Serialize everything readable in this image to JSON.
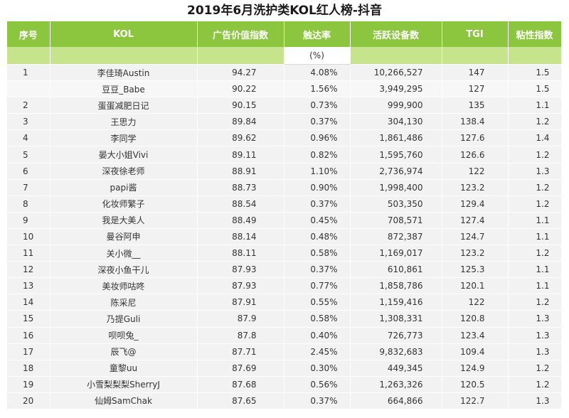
{
  "title": "2019年6月洗护类KOL红人榜-抖音",
  "headers": [
    "序号",
    "KOL",
    "广告价值指数",
    "触达率",
    "活跃设备数",
    "TGI",
    "粘性指数"
  ],
  "unit_row": [
    "",
    "",
    "",
    "(%)",
    "",
    "",
    ""
  ],
  "rows": [
    {
      "rank": "1",
      "kol": "李佳琦Austin",
      "ad_index": "94.27",
      "reach": "4.08%",
      "devices": "10,266,527",
      "tgi": "147",
      "stickiness": "1.5"
    },
    {
      "rank": "",
      "kol": "豆豆_Babe",
      "ad_index": "90.22",
      "reach": "1.56%",
      "devices": "3,949,295",
      "tgi": "127",
      "stickiness": "1.5"
    },
    {
      "rank": "2",
      "kol": "蛋蛋减肥日记",
      "ad_index": "90.15",
      "reach": "0.73%",
      "devices": "999,900",
      "tgi": "135",
      "stickiness": "1.1"
    },
    {
      "rank": "3",
      "kol": "王思力",
      "ad_index": "89.84",
      "reach": "0.37%",
      "devices": "304,130",
      "tgi": "138.4",
      "stickiness": "1.2"
    },
    {
      "rank": "4",
      "kol": "李同学",
      "ad_index": "89.62",
      "reach": "0.96%",
      "devices": "1,861,486",
      "tgi": "127.6",
      "stickiness": "1.4"
    },
    {
      "rank": "5",
      "kol": "晏大小姐Vivi",
      "ad_index": "89.11",
      "reach": "0.82%",
      "devices": "1,595,760",
      "tgi": "126.6",
      "stickiness": "1.2"
    },
    {
      "rank": "6",
      "kol": "深夜徐老师",
      "ad_index": "88.91",
      "reach": "1.10%",
      "devices": "2,736,974",
      "tgi": "122",
      "stickiness": "1.3"
    },
    {
      "rank": "7",
      "kol": "papi酱",
      "ad_index": "88.73",
      "reach": "0.90%",
      "devices": "1,998,400",
      "tgi": "123.2",
      "stickiness": "1.2"
    },
    {
      "rank": "8",
      "kol": "化妆师繁子",
      "ad_index": "88.54",
      "reach": "0.37%",
      "devices": "503,350",
      "tgi": "129.4",
      "stickiness": "1.2"
    },
    {
      "rank": "9",
      "kol": "我是大美人",
      "ad_index": "88.49",
      "reach": "0.45%",
      "devices": "708,571",
      "tgi": "127.4",
      "stickiness": "1.1"
    },
    {
      "rank": "10",
      "kol": "曼谷阿申",
      "ad_index": "88.14",
      "reach": "0.48%",
      "devices": "872,387",
      "tgi": "124.7",
      "stickiness": "1.1"
    },
    {
      "rank": "11",
      "kol": "关小微__",
      "ad_index": "88.11",
      "reach": "0.58%",
      "devices": "1,169,017",
      "tgi": "123.2",
      "stickiness": "1.2"
    },
    {
      "rank": "12",
      "kol": "深夜小鱼干儿",
      "ad_index": "87.93",
      "reach": "0.37%",
      "devices": "610,861",
      "tgi": "125.3",
      "stickiness": "1.1"
    },
    {
      "rank": "13",
      "kol": "美妆师咕咚",
      "ad_index": "87.93",
      "reach": "0.77%",
      "devices": "1,858,786",
      "tgi": "120.1",
      "stickiness": "1.1"
    },
    {
      "rank": "14",
      "kol": "陈采尼",
      "ad_index": "87.91",
      "reach": "0.55%",
      "devices": "1,159,416",
      "tgi": "122",
      "stickiness": "1.2"
    },
    {
      "rank": "15",
      "kol": "乃提Guli",
      "ad_index": "87.9",
      "reach": "0.58%",
      "devices": "1,308,331",
      "tgi": "120.8",
      "stickiness": "1.3"
    },
    {
      "rank": "16",
      "kol": "呗呗兔_",
      "ad_index": "87.8",
      "reach": "0.40%",
      "devices": "726,773",
      "tgi": "123.4",
      "stickiness": "1.3"
    },
    {
      "rank": "17",
      "kol": "辰飞@",
      "ad_index": "87.71",
      "reach": "2.45%",
      "devices": "9,832,683",
      "tgi": "109.4",
      "stickiness": "1.3"
    },
    {
      "rank": "18",
      "kol": "童黎uu",
      "ad_index": "87.69",
      "reach": "0.30%",
      "devices": "449,345",
      "tgi": "124.9",
      "stickiness": "1.2"
    },
    {
      "rank": "19",
      "kol": "小雪梨梨梨SherryJ",
      "ad_index": "87.68",
      "reach": "0.56%",
      "devices": "1,263,326",
      "tgi": "120.5",
      "stickiness": "1.2"
    },
    {
      "rank": "20",
      "kol": "仙姆SamChak",
      "ad_index": "87.65",
      "reach": "0.37%",
      "devices": "664,866",
      "tgi": "122.7",
      "stickiness": "1.3"
    }
  ],
  "colors": {
    "header_bg": "#8cc63f",
    "subheader_bg": "#c6e48c",
    "row_bg": "#f2f2f2",
    "header_text": "#ffffff"
  }
}
